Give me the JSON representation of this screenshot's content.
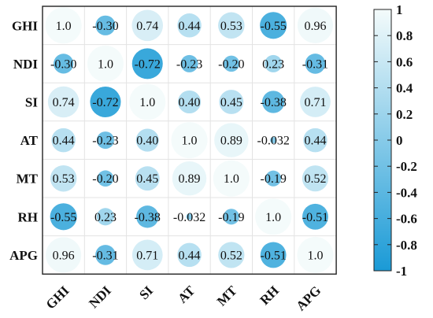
{
  "chart_data": {
    "type": "heatmap",
    "subtype": "correlation-circle-matrix",
    "variables": [
      "GHI",
      "NDI",
      "SI",
      "AT",
      "MT",
      "RH",
      "APG"
    ],
    "matrix": [
      [
        1.0,
        -0.3,
        0.74,
        0.44,
        0.53,
        -0.55,
        0.96
      ],
      [
        -0.3,
        1.0,
        -0.72,
        -0.23,
        -0.2,
        0.23,
        -0.31
      ],
      [
        0.74,
        -0.72,
        1.0,
        0.4,
        0.45,
        -0.38,
        0.71
      ],
      [
        0.44,
        -0.23,
        0.4,
        1.0,
        0.89,
        -0.032,
        0.44
      ],
      [
        0.53,
        -0.2,
        0.45,
        0.89,
        1.0,
        -0.19,
        0.52
      ],
      [
        -0.55,
        0.23,
        -0.38,
        -0.032,
        -0.19,
        1.0,
        -0.51
      ],
      [
        0.96,
        -0.31,
        0.71,
        0.44,
        0.52,
        -0.51,
        1.0
      ]
    ],
    "labels": [
      [
        "1.0",
        "-0.30",
        "0.74",
        "0.44",
        "0.53",
        "-0.55",
        "0.96"
      ],
      [
        "-0.30",
        "1.0",
        "-0.72",
        "-0.23",
        "-0.20",
        "0.23",
        "-0.31"
      ],
      [
        "0.74",
        "-0.72",
        "1.0",
        "0.40",
        "0.45",
        "-0.38",
        "0.71"
      ],
      [
        "0.44",
        "-0.23",
        "0.40",
        "1.0",
        "0.89",
        "-0.032",
        "0.44"
      ],
      [
        "0.53",
        "-0.20",
        "0.45",
        "0.89",
        "1.0",
        "-0.19",
        "0.52"
      ],
      [
        "-0.55",
        "0.23",
        "-0.38",
        "-0.032",
        "-0.19",
        "1.0",
        "-0.51"
      ],
      [
        "0.96",
        "-0.31",
        "0.71",
        "0.44",
        "0.52",
        "-0.51",
        "1.0"
      ]
    ],
    "colorbar": {
      "range": [
        -1,
        1
      ],
      "ticks": [
        "1",
        "0.8",
        "0.6",
        "0.4",
        "0.2",
        "0",
        "-0.2",
        "-0.4",
        "-0.6",
        "-0.8",
        "-1"
      ],
      "color_high": "#f4fbfb",
      "color_low": "#1a9ad6",
      "position": "right"
    },
    "circle_size_encodes": "absolute correlation",
    "grid": true,
    "title": "",
    "xlabel": "",
    "ylabel": ""
  }
}
